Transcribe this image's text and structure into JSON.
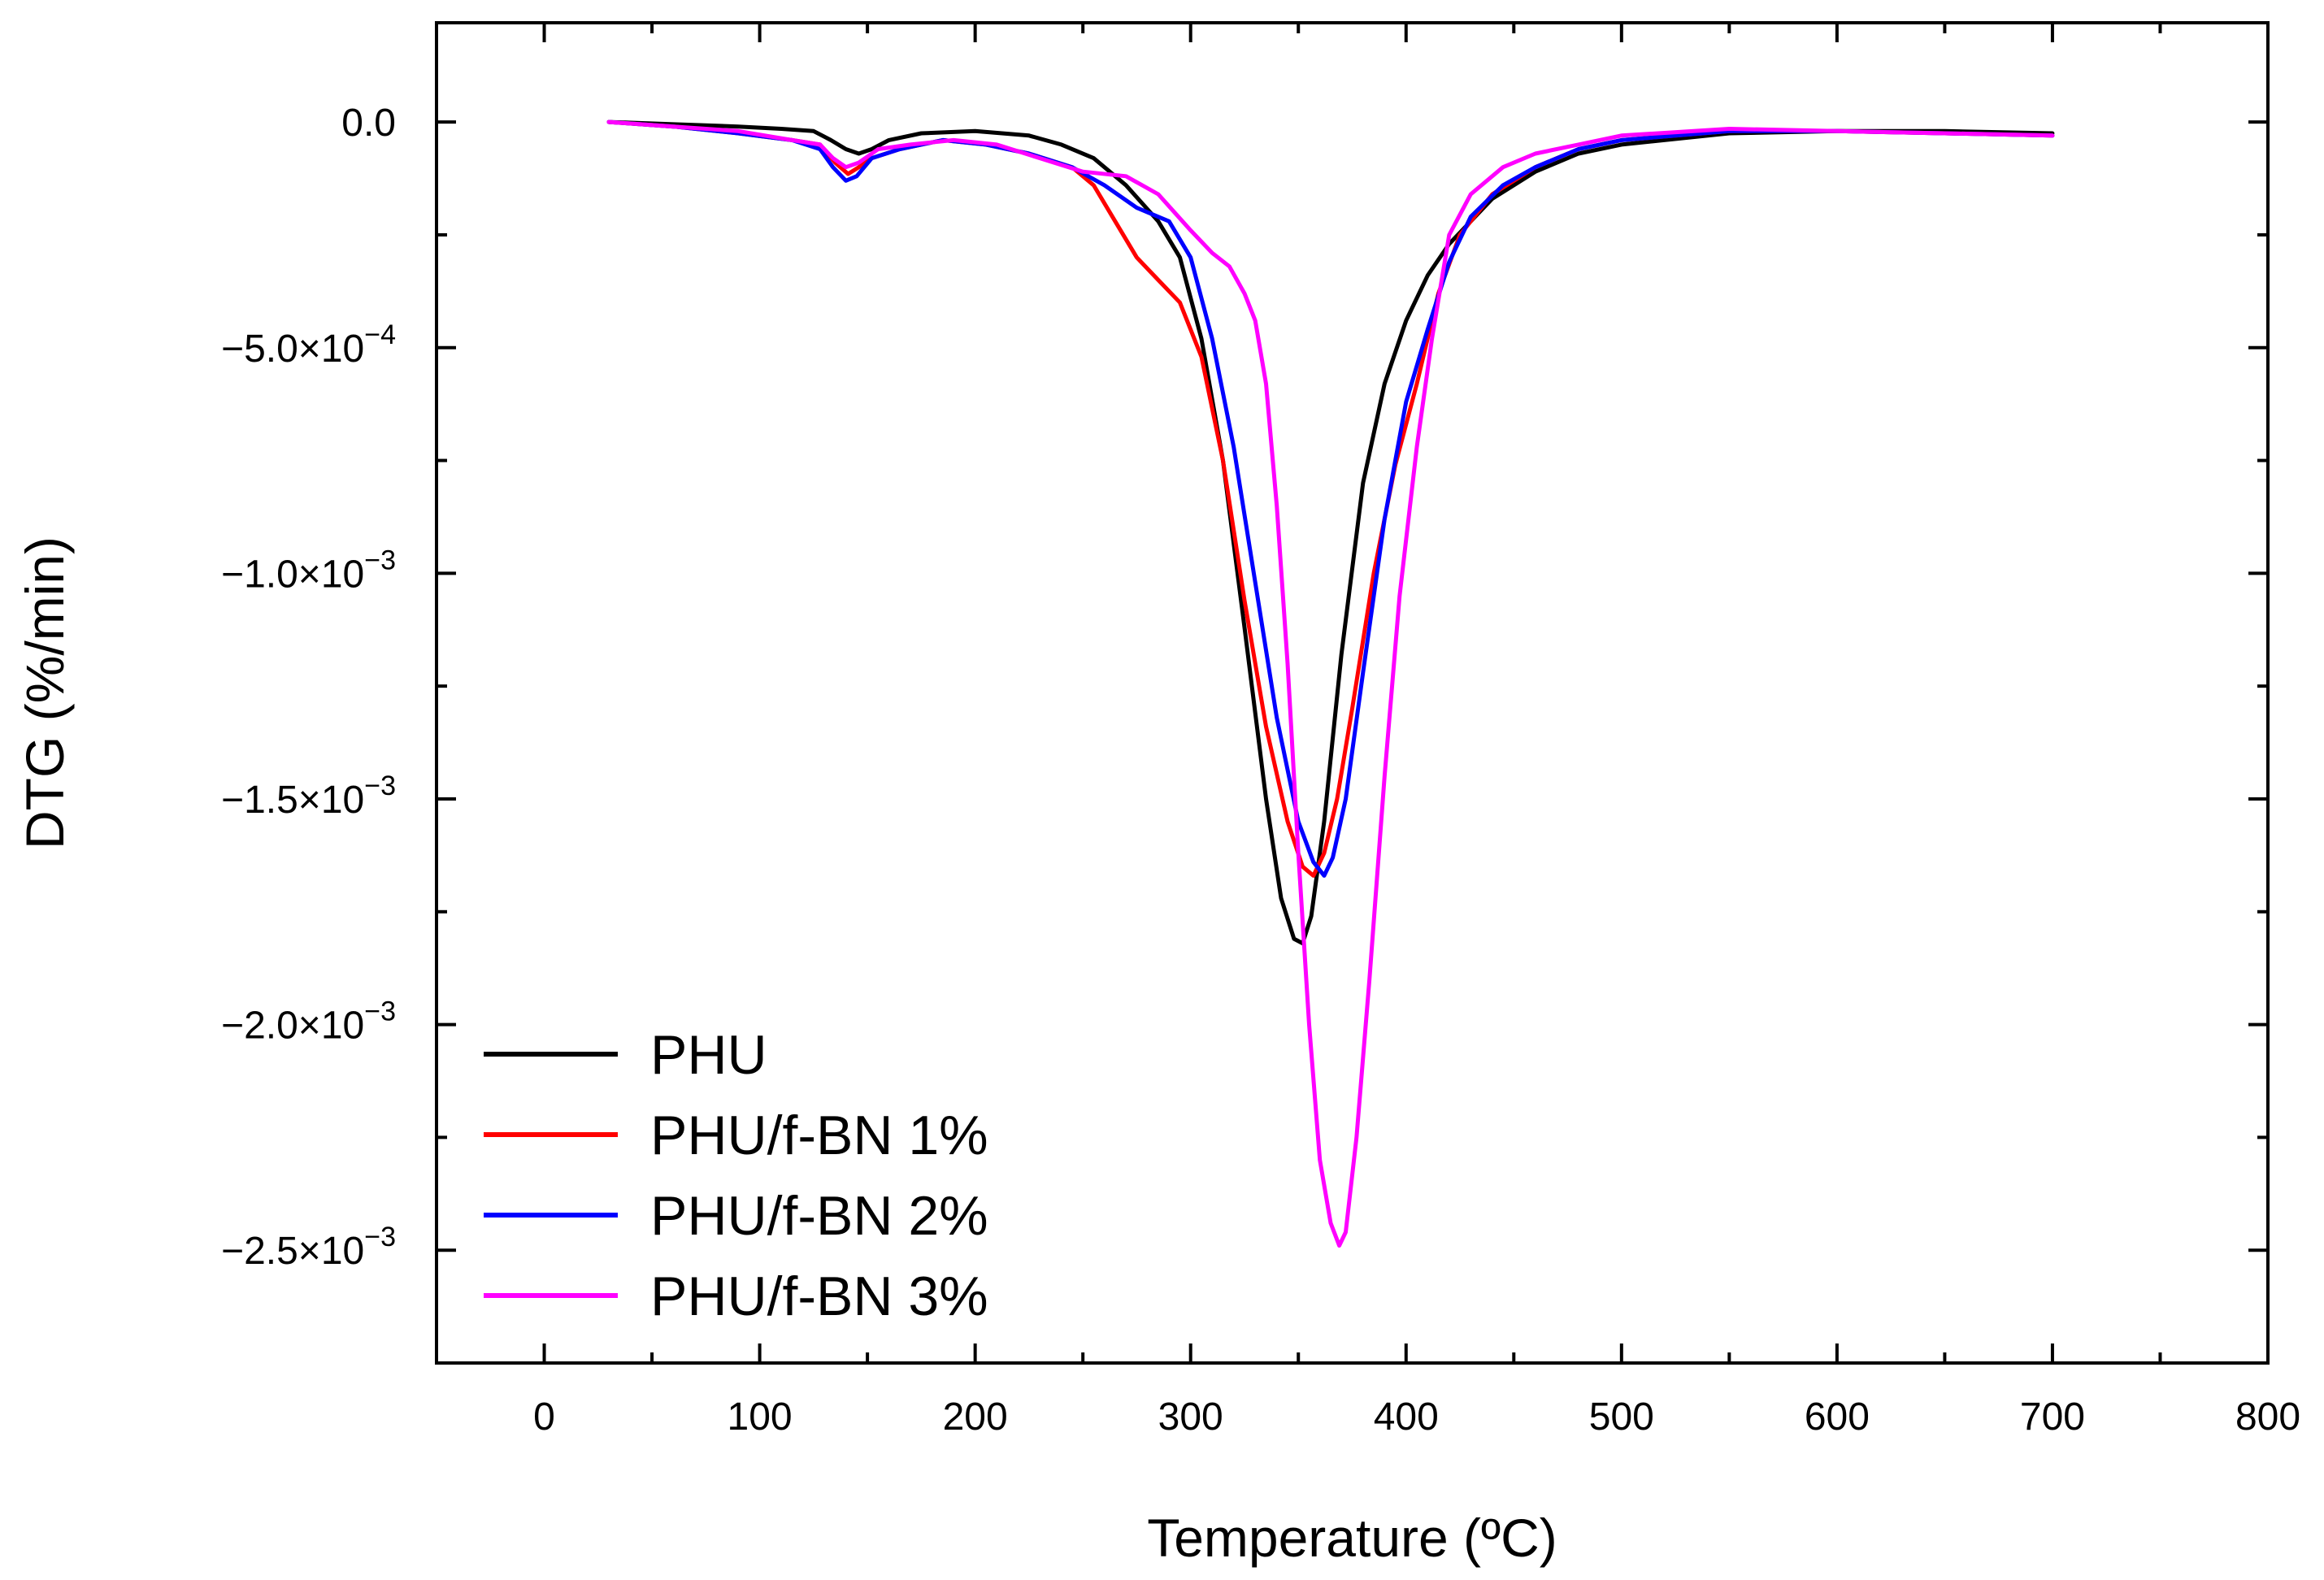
{
  "chart_data": {
    "type": "line",
    "title": "",
    "xlabel": "Temperature (ºC)",
    "ylabel": "DTG (%/min)",
    "xlim": [
      -50,
      800
    ],
    "ylim": [
      -0.00275,
      0.00022
    ],
    "x_ticks": [
      0,
      100,
      200,
      300,
      400,
      500,
      600,
      700,
      800
    ],
    "x_tick_labels": [
      "0",
      "100",
      "200",
      "300",
      "400",
      "500",
      "600",
      "700",
      "800"
    ],
    "y_ticks": [
      0.0,
      -0.0005,
      -0.001,
      -0.0015,
      -0.002,
      -0.0025
    ],
    "y_tick_labels": [
      {
        "mant": "0.0",
        "exp": ""
      },
      {
        "mant": "−5.0×10",
        "exp": "−4"
      },
      {
        "mant": "−1.0×10",
        "exp": "−3"
      },
      {
        "mant": "−1.5×10",
        "exp": "−3"
      },
      {
        "mant": "−2.0×10",
        "exp": "−3"
      },
      {
        "mant": "−2.5×10",
        "exp": "−3"
      }
    ],
    "legend_position": "bottom-left",
    "grid": false,
    "series": [
      {
        "name": "PHU",
        "color": "#000000",
        "points": [
          [
            30,
            0
          ],
          [
            60,
            -5e-06
          ],
          [
            90,
            -1e-05
          ],
          [
            110,
            -1.5e-05
          ],
          [
            125,
            -2e-05
          ],
          [
            133,
            -4e-05
          ],
          [
            140,
            -6e-05
          ],
          [
            146,
            -7e-05
          ],
          [
            152,
            -6e-05
          ],
          [
            160,
            -4e-05
          ],
          [
            175,
            -2.5e-05
          ],
          [
            200,
            -2e-05
          ],
          [
            225,
            -3e-05
          ],
          [
            240,
            -5e-05
          ],
          [
            255,
            -8e-05
          ],
          [
            270,
            -0.00014
          ],
          [
            285,
            -0.00022
          ],
          [
            295,
            -0.0003
          ],
          [
            305,
            -0.00048
          ],
          [
            315,
            -0.00075
          ],
          [
            325,
            -0.00112
          ],
          [
            335,
            -0.0015
          ],
          [
            342,
            -0.00172
          ],
          [
            348,
            -0.00181
          ],
          [
            352,
            -0.00182
          ],
          [
            356,
            -0.00176
          ],
          [
            362,
            -0.00155
          ],
          [
            370,
            -0.00118
          ],
          [
            380,
            -0.0008
          ],
          [
            390,
            -0.00058
          ],
          [
            400,
            -0.00044
          ],
          [
            410,
            -0.00034
          ],
          [
            420,
            -0.00027
          ],
          [
            440,
            -0.00017
          ],
          [
            460,
            -0.00011
          ],
          [
            480,
            -7e-05
          ],
          [
            500,
            -5e-05
          ],
          [
            550,
            -2.5e-05
          ],
          [
            600,
            -2e-05
          ],
          [
            650,
            -2e-05
          ],
          [
            700,
            -2.5e-05
          ]
        ]
      },
      {
        "name": "PHU/f-BN 1%",
        "color": "#ff0000",
        "points": [
          [
            30,
            0
          ],
          [
            60,
            -1e-05
          ],
          [
            90,
            -2.5e-05
          ],
          [
            115,
            -4e-05
          ],
          [
            128,
            -5e-05
          ],
          [
            135,
            -9e-05
          ],
          [
            141,
            -0.000115
          ],
          [
            146,
            -0.0001
          ],
          [
            152,
            -8e-05
          ],
          [
            165,
            -6e-05
          ],
          [
            185,
            -4e-05
          ],
          [
            205,
            -5e-05
          ],
          [
            225,
            -7e-05
          ],
          [
            245,
            -0.0001
          ],
          [
            255,
            -0.00014
          ],
          [
            265,
            -0.00022
          ],
          [
            275,
            -0.0003
          ],
          [
            285,
            -0.00035
          ],
          [
            295,
            -0.0004
          ],
          [
            305,
            -0.00052
          ],
          [
            315,
            -0.00075
          ],
          [
            325,
            -0.00106
          ],
          [
            335,
            -0.00134
          ],
          [
            345,
            -0.00155
          ],
          [
            352,
            -0.00165
          ],
          [
            357,
            -0.00167
          ],
          [
            362,
            -0.00162
          ],
          [
            368,
            -0.0015
          ],
          [
            375,
            -0.0013
          ],
          [
            385,
            -0.001
          ],
          [
            395,
            -0.00076
          ],
          [
            405,
            -0.00058
          ],
          [
            415,
            -0.00038
          ],
          [
            425,
            -0.00025
          ],
          [
            440,
            -0.00016
          ],
          [
            460,
            -0.0001
          ],
          [
            480,
            -6e-05
          ],
          [
            500,
            -4e-05
          ],
          [
            550,
            -2e-05
          ],
          [
            600,
            -2e-05
          ],
          [
            650,
            -2.5e-05
          ],
          [
            700,
            -3e-05
          ]
        ]
      },
      {
        "name": "PHU/f-BN 2%",
        "color": "#0000ff",
        "points": [
          [
            30,
            0
          ],
          [
            60,
            -1e-05
          ],
          [
            90,
            -2.5e-05
          ],
          [
            115,
            -4e-05
          ],
          [
            128,
            -6e-05
          ],
          [
            134,
            -0.0001
          ],
          [
            140,
            -0.00013
          ],
          [
            145,
            -0.00012
          ],
          [
            152,
            -8e-05
          ],
          [
            165,
            -6e-05
          ],
          [
            185,
            -4e-05
          ],
          [
            205,
            -5e-05
          ],
          [
            225,
            -7e-05
          ],
          [
            245,
            -0.0001
          ],
          [
            260,
            -0.00014
          ],
          [
            275,
            -0.00019
          ],
          [
            290,
            -0.00022
          ],
          [
            300,
            -0.0003
          ],
          [
            310,
            -0.00048
          ],
          [
            320,
            -0.00072
          ],
          [
            330,
            -0.00102
          ],
          [
            340,
            -0.00132
          ],
          [
            350,
            -0.00155
          ],
          [
            357,
            -0.00164
          ],
          [
            362,
            -0.00167
          ],
          [
            366,
            -0.00163
          ],
          [
            372,
            -0.0015
          ],
          [
            380,
            -0.00122
          ],
          [
            390,
            -0.00088
          ],
          [
            400,
            -0.00062
          ],
          [
            410,
            -0.00046
          ],
          [
            420,
            -0.00031
          ],
          [
            430,
            -0.00021
          ],
          [
            445,
            -0.00014
          ],
          [
            460,
            -0.0001
          ],
          [
            480,
            -6e-05
          ],
          [
            500,
            -4e-05
          ],
          [
            550,
            -2e-05
          ],
          [
            600,
            -2e-05
          ],
          [
            650,
            -2.5e-05
          ],
          [
            700,
            -3e-05
          ]
        ]
      },
      {
        "name": "PHU/f-BN 3%",
        "color": "#ff00ff",
        "points": [
          [
            30,
            0
          ],
          [
            60,
            -1e-05
          ],
          [
            90,
            -2e-05
          ],
          [
            115,
            -4e-05
          ],
          [
            128,
            -5e-05
          ],
          [
            134,
            -8e-05
          ],
          [
            140,
            -0.0001
          ],
          [
            146,
            -9e-05
          ],
          [
            155,
            -6e-05
          ],
          [
            170,
            -5e-05
          ],
          [
            190,
            -4e-05
          ],
          [
            210,
            -5e-05
          ],
          [
            230,
            -8e-05
          ],
          [
            250,
            -0.00011
          ],
          [
            270,
            -0.00012
          ],
          [
            285,
            -0.00016
          ],
          [
            300,
            -0.00024
          ],
          [
            310,
            -0.00029
          ],
          [
            318,
            -0.00032
          ],
          [
            325,
            -0.00038
          ],
          [
            330,
            -0.00044
          ],
          [
            335,
            -0.00058
          ],
          [
            340,
            -0.00085
          ],
          [
            345,
            -0.0012
          ],
          [
            350,
            -0.00162
          ],
          [
            355,
            -0.002
          ],
          [
            360,
            -0.0023
          ],
          [
            365,
            -0.00244
          ],
          [
            369,
            -0.00249
          ],
          [
            372,
            -0.00246
          ],
          [
            377,
            -0.00225
          ],
          [
            383,
            -0.0019
          ],
          [
            390,
            -0.00145
          ],
          [
            397,
            -0.00105
          ],
          [
            405,
            -0.00072
          ],
          [
            412,
            -0.00048
          ],
          [
            420,
            -0.00025
          ],
          [
            430,
            -0.00016
          ],
          [
            445,
            -0.0001
          ],
          [
            460,
            -7e-05
          ],
          [
            480,
            -5e-05
          ],
          [
            500,
            -3e-05
          ],
          [
            550,
            -1.5e-05
          ],
          [
            600,
            -2e-05
          ],
          [
            650,
            -2.5e-05
          ],
          [
            700,
            -3e-05
          ]
        ]
      }
    ]
  }
}
